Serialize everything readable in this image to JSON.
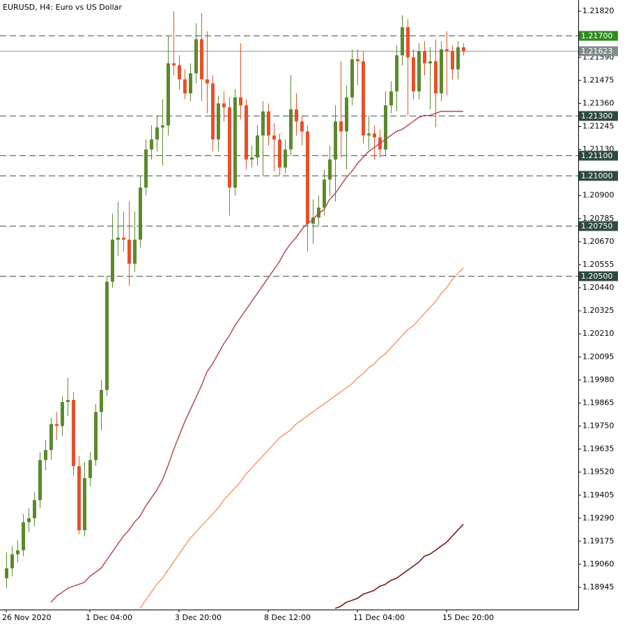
{
  "chart_data": {
    "type": "candlestick",
    "title": "EURUSD, H4:  Euro vs US Dollar",
    "categories": [
      "26 Nov 2020",
      null,
      null,
      null,
      null,
      null,
      null,
      null,
      null,
      null,
      null,
      null,
      null,
      null,
      null,
      "1 Dec 04:00",
      null,
      null,
      null,
      null,
      null,
      null,
      null,
      null,
      null,
      null,
      null,
      null,
      null,
      null,
      null,
      "3 Dec 20:00",
      null,
      null,
      null,
      null,
      null,
      null,
      null,
      null,
      null,
      null,
      null,
      null,
      null,
      null,
      null,
      "8 Dec 12:00",
      null,
      null,
      null,
      null,
      null,
      null,
      null,
      null,
      null,
      null,
      null,
      null,
      null,
      null,
      null,
      "11 Dec 04:00",
      null,
      null,
      null,
      null,
      null,
      null,
      null,
      null,
      null,
      null,
      null,
      null,
      null,
      null,
      null,
      "15 Dec 20:00",
      null,
      null,
      null
    ],
    "open": [
      1.1899,
      1.1904,
      1.1911,
      1.1913,
      1.1927,
      1.1929,
      1.1938,
      1.1958,
      1.1963,
      1.1976,
      1.1975,
      1.1987,
      1.1988,
      1.1955,
      1.1923,
      1.1949,
      1.1958,
      1.1982,
      1.1993,
      1.2047,
      1.2068,
      1.2069,
      1.2068,
      1.2056,
      1.2068,
      1.2094,
      1.2113,
      1.2118,
      1.2124,
      1.2125,
      1.2156,
      1.2155,
      1.2148,
      1.2141,
      1.2151,
      1.2168,
      1.2148,
      1.2146,
      1.2118,
      1.2136,
      1.2134,
      1.2094,
      1.2139,
      1.2135,
      1.2108,
      1.2109,
      1.212,
      1.2132,
      1.212,
      1.2118,
      1.2104,
      1.2113,
      1.2133,
      1.2127,
      1.2122,
      1.2076,
      1.2079,
      1.2084,
      1.2098,
      1.2108,
      1.2127,
      1.2122,
      1.2139,
      1.2158,
      1.2157,
      1.212,
      1.2121,
      1.2119,
      1.2113,
      1.2135,
      1.2142,
      1.216,
      1.2174,
      1.2159,
      1.2142,
      1.2162,
      1.2156,
      1.2157,
      1.2141,
      1.2163,
      1.2162,
      1.2153,
      1.2164
    ],
    "high": [
      1.1912,
      1.1915,
      1.1918,
      1.1931,
      1.1934,
      1.1942,
      1.1962,
      1.1968,
      1.1979,
      1.1982,
      1.199,
      1.1999,
      1.1992,
      1.196,
      1.1957,
      1.1962,
      1.1986,
      1.1998,
      1.205,
      1.2081,
      1.2087,
      1.2082,
      1.2087,
      1.2082,
      1.21,
      1.2118,
      1.2125,
      1.213,
      1.2138,
      1.217,
      1.2182,
      1.216,
      1.2153,
      1.2156,
      1.2176,
      1.2181,
      1.2172,
      1.215,
      1.214,
      1.2142,
      1.2139,
      1.2143,
      1.2166,
      1.2138,
      1.2115,
      1.2125,
      1.2137,
      1.2136,
      1.2126,
      1.2121,
      1.2118,
      1.215,
      1.2141,
      1.213,
      1.2125,
      1.2088,
      1.209,
      1.2103,
      1.2115,
      1.2135,
      1.2157,
      1.2145,
      1.2163,
      1.2163,
      1.2162,
      1.213,
      1.2125,
      1.2123,
      1.2142,
      1.2147,
      1.2165,
      1.218,
      1.2178,
      1.2163,
      1.2166,
      1.2167,
      1.2164,
      1.2168,
      1.2167,
      1.2172,
      1.2165,
      1.2167,
      1.2166
    ],
    "low": [
      1.1894,
      1.19,
      1.1907,
      1.191,
      1.1922,
      1.1925,
      1.1934,
      1.1953,
      1.1958,
      1.1968,
      1.197,
      1.198,
      1.195,
      1.1921,
      1.192,
      1.1945,
      1.1955,
      1.1973,
      1.199,
      1.2044,
      1.206,
      1.2062,
      1.2045,
      1.2052,
      1.2064,
      1.209,
      1.2108,
      1.2112,
      1.2105,
      1.212,
      1.215,
      1.2143,
      1.2138,
      1.2137,
      1.2146,
      1.2137,
      1.2131,
      1.2112,
      1.2112,
      1.2127,
      1.208,
      1.209,
      1.2128,
      1.2103,
      1.2104,
      1.2105,
      1.21,
      1.2115,
      1.2102,
      1.21,
      1.2101,
      1.211,
      1.212,
      1.2115,
      1.2062,
      1.2066,
      1.2075,
      1.208,
      1.209,
      1.2087,
      1.2109,
      1.2103,
      1.2135,
      1.2145,
      1.2116,
      1.2113,
      1.2108,
      1.2109,
      1.211,
      1.2131,
      1.2132,
      1.2155,
      1.213,
      1.2138,
      1.2138,
      1.215,
      1.2133,
      1.2124,
      1.2137,
      1.214,
      1.2148,
      1.2148,
      1.216
    ],
    "close": [
      1.1904,
      1.1911,
      1.1913,
      1.1927,
      1.1929,
      1.1938,
      1.1958,
      1.1963,
      1.1976,
      1.1975,
      1.1987,
      1.1988,
      1.1955,
      1.1923,
      1.1949,
      1.1958,
      1.1982,
      1.1993,
      1.2047,
      1.2068,
      1.2069,
      1.2068,
      1.2056,
      1.2068,
      1.2094,
      1.2113,
      1.2118,
      1.2124,
      1.2125,
      1.2156,
      1.2155,
      1.2148,
      1.2141,
      1.2151,
      1.2168,
      1.2148,
      1.2146,
      1.2118,
      1.2136,
      1.2134,
      1.2094,
      1.2139,
      1.2135,
      1.2108,
      1.2109,
      1.212,
      1.2132,
      1.212,
      1.2118,
      1.2104,
      1.2113,
      1.2133,
      1.2127,
      1.2122,
      1.2076,
      1.2079,
      1.2084,
      1.2098,
      1.2108,
      1.2127,
      1.2122,
      1.2139,
      1.2158,
      1.2157,
      1.212,
      1.2121,
      1.2119,
      1.2113,
      1.2135,
      1.2142,
      1.216,
      1.2174,
      1.2159,
      1.2142,
      1.2162,
      1.2156,
      1.2157,
      1.2141,
      1.2163,
      1.2162,
      1.2153,
      1.2164,
      1.2162
    ],
    "bull_color": "#5b8a2d",
    "bear_color": "#e8502a",
    "series": [
      {
        "color": "#b84a50",
        "values": [
          null,
          null,
          null,
          null,
          null,
          null,
          null,
          null,
          1.1887,
          1.189,
          1.1892,
          1.1894,
          1.1895,
          1.1896,
          1.1897,
          1.19,
          1.1902,
          1.1904,
          1.1908,
          1.1912,
          1.1916,
          1.192,
          1.1923,
          1.1927,
          1.193,
          1.1935,
          1.1939,
          1.1943,
          1.1948,
          1.1955,
          1.1963,
          1.197,
          1.1977,
          1.1983,
          1.1989,
          1.1995,
          1.2002,
          1.2006,
          1.2011,
          1.2016,
          1.202,
          1.2025,
          1.2029,
          1.2033,
          1.2037,
          1.2041,
          1.2045,
          1.2049,
          1.2053,
          1.2057,
          1.2062,
          1.2066,
          1.2069,
          1.2073,
          1.2076,
          1.2078,
          1.2081,
          1.2083,
          1.2088,
          1.2091,
          1.2095,
          1.2099,
          1.2102,
          1.2106,
          1.2109,
          1.2112,
          1.2114,
          1.2116,
          1.2118,
          1.212,
          1.2122,
          1.2123,
          1.2125,
          1.2127,
          1.2129,
          1.213,
          1.213,
          1.2131,
          1.2132,
          1.2132,
          1.2132,
          1.2132,
          1.2132
        ]
      },
      {
        "color": "#f59a70",
        "values": [
          null,
          null,
          null,
          null,
          null,
          null,
          null,
          null,
          null,
          null,
          null,
          null,
          null,
          null,
          null,
          null,
          null,
          null,
          null,
          null,
          null,
          null,
          null,
          null,
          1.1884,
          1.1888,
          1.1892,
          1.1896,
          1.1899,
          1.1903,
          1.1907,
          1.1911,
          1.1915,
          1.1919,
          1.1922,
          1.1925,
          1.1928,
          1.1931,
          1.1934,
          1.1938,
          1.1941,
          1.1944,
          1.1947,
          1.1951,
          1.1954,
          1.1957,
          1.196,
          1.1963,
          1.1966,
          1.1969,
          1.1971,
          1.1973,
          1.1976,
          1.1978,
          1.198,
          1.1982,
          1.1984,
          1.1986,
          1.1988,
          1.199,
          1.1992,
          1.1994,
          1.1996,
          1.1999,
          1.2001,
          1.2004,
          1.2006,
          1.2009,
          1.2011,
          1.2014,
          1.2017,
          1.202,
          1.2023,
          1.2025,
          1.2028,
          1.2031,
          1.2034,
          1.2037,
          1.2041,
          1.2044,
          1.2048,
          1.2051,
          1.2054
        ]
      },
      {
        "color": "#7a0a0a",
        "values": [
          null,
          null,
          null,
          null,
          null,
          null,
          null,
          null,
          null,
          null,
          null,
          null,
          null,
          null,
          null,
          null,
          null,
          null,
          null,
          null,
          null,
          null,
          null,
          null,
          null,
          null,
          null,
          null,
          null,
          null,
          null,
          null,
          null,
          null,
          null,
          null,
          null,
          null,
          null,
          null,
          null,
          null,
          null,
          null,
          null,
          null,
          null,
          null,
          null,
          null,
          null,
          null,
          null,
          null,
          null,
          null,
          null,
          null,
          null,
          1.1884,
          1.1885,
          1.1887,
          1.1888,
          1.1889,
          1.1891,
          1.1892,
          1.1893,
          1.1895,
          1.1896,
          1.1898,
          1.1899,
          1.1901,
          1.1903,
          1.1905,
          1.1907,
          1.191,
          1.1911,
          1.1913,
          1.1915,
          1.1917,
          1.192,
          1.1923,
          1.1926
        ]
      }
    ],
    "ylim": [
      1.18834,
      1.21876
    ],
    "yticks": [
      {
        "value": 1.2182,
        "label": "1.21820"
      },
      {
        "value": 1.2159,
        "label": "1.21590"
      },
      {
        "value": 1.21475,
        "label": "1.21475"
      },
      {
        "value": 1.2136,
        "label": "1.21360"
      },
      {
        "value": 1.21245,
        "label": "1.21245"
      },
      {
        "value": 1.2113,
        "label": "1.21130"
      },
      {
        "value": 1.209,
        "label": "1.20900"
      },
      {
        "value": 1.20785,
        "label": "1.20785"
      },
      {
        "value": 1.2067,
        "label": "1.20670"
      },
      {
        "value": 1.20555,
        "label": "1.20555"
      },
      {
        "value": 1.2044,
        "label": "1.20440"
      },
      {
        "value": 1.20325,
        "label": "1.20325"
      },
      {
        "value": 1.2021,
        "label": "1.20210"
      },
      {
        "value": 1.20095,
        "label": "1.20095"
      },
      {
        "value": 1.1998,
        "label": "1.19980"
      },
      {
        "value": 1.19865,
        "label": "1.19865"
      },
      {
        "value": 1.1975,
        "label": "1.19750"
      },
      {
        "value": 1.19635,
        "label": "1.19635"
      },
      {
        "value": 1.1952,
        "label": "1.19520"
      },
      {
        "value": 1.19405,
        "label": "1.19405"
      },
      {
        "value": 1.1929,
        "label": "1.19290"
      },
      {
        "value": 1.19175,
        "label": "1.19175"
      },
      {
        "value": 1.1906,
        "label": "1.19060"
      },
      {
        "value": 1.18945,
        "label": "1.18945"
      }
    ],
    "levels": [
      {
        "value": 1.217,
        "label": "1.21700",
        "color": "#2e8b1e",
        "line": "dashed"
      },
      {
        "value": 1.21623,
        "label": "1.21623",
        "color": "#7f8c8d",
        "line": "solid"
      },
      {
        "value": 1.213,
        "label": "1.21300",
        "color": "#2f4a3e",
        "line": "dashed"
      },
      {
        "value": 1.211,
        "label": "1.21100",
        "color": "#2f4a3e",
        "line": "dashed"
      },
      {
        "value": 1.21,
        "label": "1.21000",
        "color": "#2f4a3e",
        "line": "dashed"
      },
      {
        "value": 1.2075,
        "label": "1.20750",
        "color": "#2f4a3e",
        "line": "dashed"
      },
      {
        "value": 1.205,
        "label": "1.20500",
        "color": "#2f4a3e",
        "line": "dashed"
      }
    ]
  }
}
